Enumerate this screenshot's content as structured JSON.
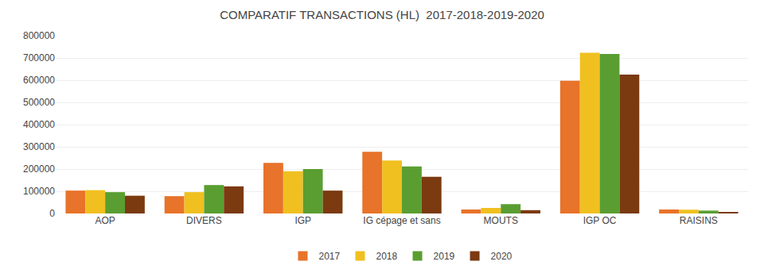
{
  "chart_data": {
    "type": "bar",
    "title": "COMPARATIF TRANSACTIONS (HL)  2017-2018-2019-2020",
    "categories": [
      "AOP",
      "DIVERS",
      "IGP",
      "IG cépage et sans",
      "MOUTS",
      "IGP OC",
      "RAISINS"
    ],
    "series": [
      {
        "name": "2017",
        "color": "#E8732A",
        "values": [
          103000,
          78000,
          228000,
          278000,
          18000,
          597000,
          18000
        ]
      },
      {
        "name": "2018",
        "color": "#F0C020",
        "values": [
          105000,
          96000,
          190000,
          238000,
          25000,
          723000,
          17000
        ]
      },
      {
        "name": "2019",
        "color": "#5A9E32",
        "values": [
          96000,
          128000,
          200000,
          212000,
          42000,
          718000,
          13000
        ]
      },
      {
        "name": "2020",
        "color": "#7B3A10",
        "values": [
          80000,
          122000,
          103000,
          165000,
          15000,
          625000,
          7000
        ]
      }
    ],
    "ylim": [
      0,
      800000
    ],
    "yticks": [
      0,
      100000,
      200000,
      300000,
      400000,
      500000,
      600000,
      700000,
      800000
    ],
    "grid": true,
    "legend": "bottom"
  }
}
